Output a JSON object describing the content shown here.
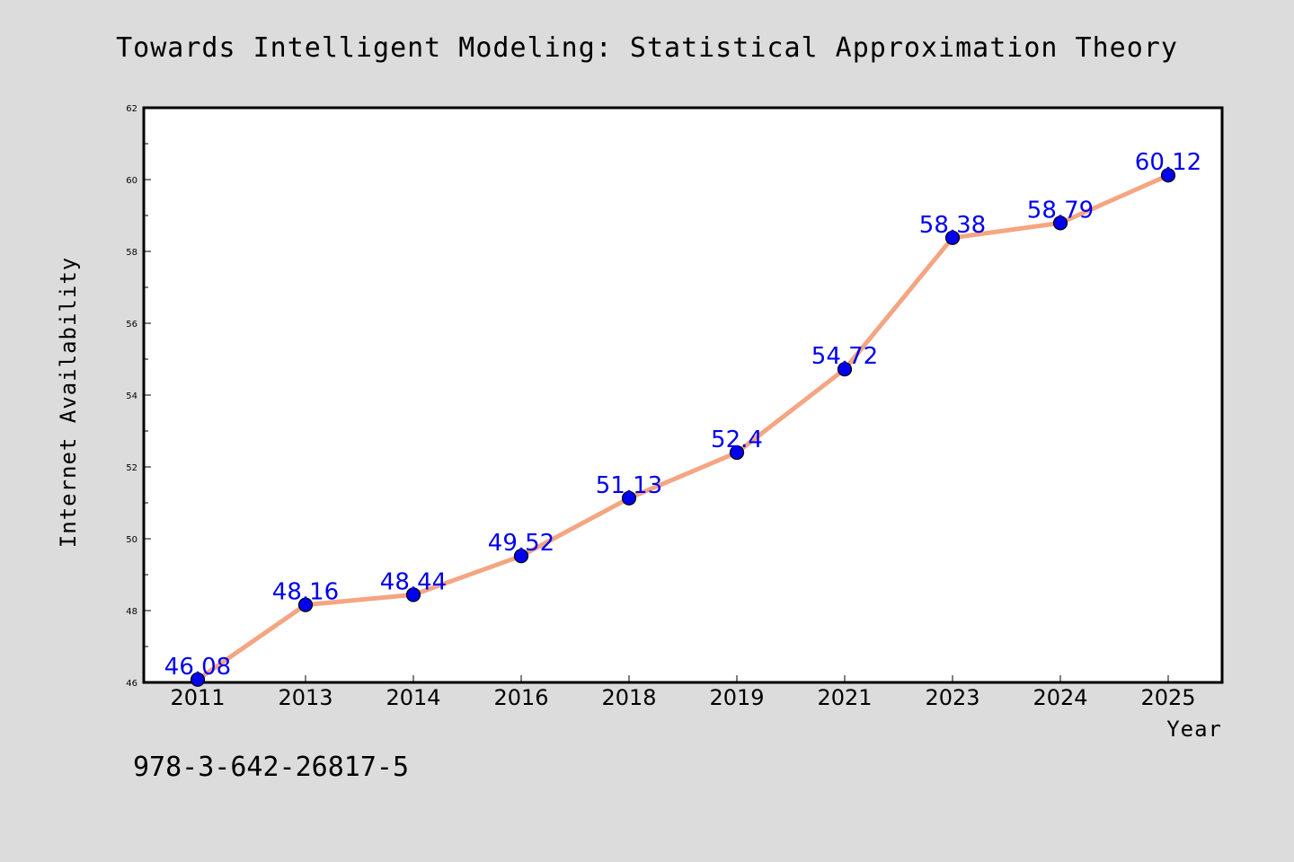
{
  "chart_data": {
    "type": "line",
    "title": "Towards Intelligent Modeling: Statistical Approximation Theory",
    "xlabel": "Year",
    "ylabel": "Internet Availability",
    "categories": [
      "2011",
      "2013",
      "2014",
      "2016",
      "2018",
      "2019",
      "2021",
      "2023",
      "2024",
      "2025"
    ],
    "series": [
      {
        "values": [
          46.08,
          48.16,
          48.44,
          49.52,
          51.13,
          52.4,
          54.72,
          58.38,
          58.79,
          60.12
        ],
        "line_color": "#f4a582",
        "marker_color": "#0000ee",
        "label_color": "#0000ee"
      }
    ],
    "data_labels": [
      "46.08",
      "48.16",
      "48.44",
      "49.52",
      "51.13",
      "52.4",
      "54.72",
      "58.38",
      "58.79",
      "60.12"
    ],
    "ylim": [
      46,
      62
    ],
    "yticks": [
      "46",
      "48",
      "50",
      "52",
      "54",
      "56",
      "58",
      "60",
      "62"
    ],
    "grid": false,
    "legend": "none"
  },
  "footer": {
    "isbn": "978-3-642-26817-5"
  },
  "colors": {
    "background": "#dcdcdc",
    "plot_background": "#ffffff"
  }
}
